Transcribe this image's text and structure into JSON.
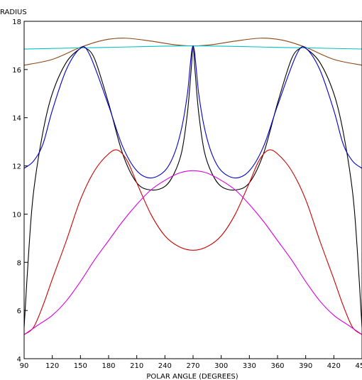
{
  "chart_data": {
    "type": "line",
    "xlabel": "POLAR ANGLE (DEGREES)",
    "ylabel": "RADIUS",
    "xlim": [
      90,
      450
    ],
    "ylim": [
      4,
      18
    ],
    "x_ticks": [
      90,
      120,
      150,
      180,
      210,
      240,
      270,
      300,
      330,
      360,
      390,
      420,
      450
    ],
    "y_ticks": [
      4,
      6,
      8,
      10,
      12,
      14,
      16,
      18
    ],
    "grid": false,
    "series": [
      {
        "color": "#8b4513",
        "points": [
          [
            90,
            16.18
          ],
          [
            120,
            16.42
          ],
          [
            150,
            16.92
          ],
          [
            175,
            17.22
          ],
          [
            198,
            17.3
          ],
          [
            225,
            17.18
          ],
          [
            250,
            17.03
          ],
          [
            270,
            16.98
          ],
          [
            290,
            17.03
          ],
          [
            315,
            17.18
          ],
          [
            342,
            17.3
          ],
          [
            365,
            17.22
          ],
          [
            390,
            16.92
          ],
          [
            420,
            16.42
          ],
          [
            450,
            16.18
          ]
        ]
      },
      {
        "color": "#00c0c0",
        "points": [
          [
            90,
            16.85
          ],
          [
            180,
            16.92
          ],
          [
            270,
            16.98
          ],
          [
            360,
            16.92
          ],
          [
            450,
            16.85
          ]
        ]
      },
      {
        "color": "#000000",
        "points": [
          [
            90,
            5.3
          ],
          [
            95,
            8.5
          ],
          [
            100,
            10.9
          ],
          [
            110,
            13.4
          ],
          [
            120,
            15.0
          ],
          [
            135,
            16.3
          ],
          [
            150,
            16.88
          ],
          [
            155,
            16.9
          ],
          [
            165,
            16.45
          ],
          [
            180,
            14.6
          ],
          [
            195,
            12.5
          ],
          [
            210,
            11.3
          ],
          [
            225,
            11.0
          ],
          [
            240,
            11.15
          ],
          [
            250,
            11.7
          ],
          [
            258,
            12.6
          ],
          [
            264,
            14.2
          ],
          [
            268,
            16.0
          ],
          [
            270,
            16.98
          ],
          [
            272,
            16.0
          ],
          [
            276,
            14.2
          ],
          [
            282,
            12.6
          ],
          [
            290,
            11.7
          ],
          [
            300,
            11.15
          ],
          [
            315,
            11.0
          ],
          [
            330,
            11.3
          ],
          [
            345,
            12.5
          ],
          [
            360,
            14.6
          ],
          [
            375,
            16.45
          ],
          [
            385,
            16.9
          ],
          [
            390,
            16.88
          ],
          [
            405,
            16.3
          ],
          [
            420,
            15.0
          ],
          [
            430,
            13.4
          ],
          [
            440,
            10.9
          ],
          [
            445,
            8.5
          ],
          [
            450,
            5.3
          ]
        ]
      },
      {
        "color": "#0000cc",
        "points": [
          [
            90,
            11.9
          ],
          [
            100,
            12.2
          ],
          [
            110,
            12.9
          ],
          [
            120,
            14.3
          ],
          [
            135,
            16.0
          ],
          [
            150,
            16.88
          ],
          [
            160,
            16.6
          ],
          [
            180,
            14.5
          ],
          [
            195,
            12.8
          ],
          [
            210,
            11.8
          ],
          [
            225,
            11.5
          ],
          [
            240,
            11.8
          ],
          [
            250,
            12.5
          ],
          [
            258,
            13.6
          ],
          [
            264,
            15.0
          ],
          [
            270,
            16.98
          ],
          [
            276,
            15.0
          ],
          [
            282,
            13.6
          ],
          [
            290,
            12.5
          ],
          [
            300,
            11.8
          ],
          [
            315,
            11.5
          ],
          [
            330,
            11.8
          ],
          [
            345,
            12.8
          ],
          [
            360,
            14.5
          ],
          [
            380,
            16.6
          ],
          [
            390,
            16.88
          ],
          [
            405,
            16.0
          ],
          [
            420,
            14.3
          ],
          [
            430,
            12.9
          ],
          [
            440,
            12.2
          ],
          [
            450,
            11.9
          ]
        ]
      },
      {
        "color": "#cc0000",
        "points": [
          [
            90,
            5.0
          ],
          [
            100,
            5.3
          ],
          [
            110,
            6.2
          ],
          [
            120,
            7.3
          ],
          [
            135,
            8.9
          ],
          [
            150,
            10.6
          ],
          [
            165,
            11.8
          ],
          [
            180,
            12.5
          ],
          [
            190,
            12.65
          ],
          [
            200,
            12.2
          ],
          [
            210,
            11.3
          ],
          [
            225,
            10.0
          ],
          [
            240,
            9.1
          ],
          [
            255,
            8.65
          ],
          [
            270,
            8.5
          ],
          [
            285,
            8.65
          ],
          [
            300,
            9.1
          ],
          [
            315,
            10.0
          ],
          [
            330,
            11.3
          ],
          [
            340,
            12.2
          ],
          [
            350,
            12.65
          ],
          [
            360,
            12.5
          ],
          [
            375,
            11.8
          ],
          [
            390,
            10.6
          ],
          [
            405,
            8.9
          ],
          [
            420,
            7.3
          ],
          [
            430,
            6.2
          ],
          [
            440,
            5.3
          ],
          [
            450,
            5.0
          ]
        ]
      },
      {
        "color": "#dd00dd",
        "points": [
          [
            90,
            5.0
          ],
          [
            105,
            5.4
          ],
          [
            120,
            5.8
          ],
          [
            135,
            6.4
          ],
          [
            150,
            7.2
          ],
          [
            165,
            8.1
          ],
          [
            180,
            8.9
          ],
          [
            195,
            9.7
          ],
          [
            210,
            10.4
          ],
          [
            225,
            11.0
          ],
          [
            240,
            11.4
          ],
          [
            255,
            11.7
          ],
          [
            270,
            11.8
          ],
          [
            285,
            11.7
          ],
          [
            300,
            11.4
          ],
          [
            315,
            11.0
          ],
          [
            330,
            10.4
          ],
          [
            345,
            9.7
          ],
          [
            360,
            8.9
          ],
          [
            375,
            8.1
          ],
          [
            390,
            7.2
          ],
          [
            405,
            6.4
          ],
          [
            420,
            5.8
          ],
          [
            435,
            5.4
          ],
          [
            450,
            5.0
          ]
        ]
      }
    ]
  }
}
